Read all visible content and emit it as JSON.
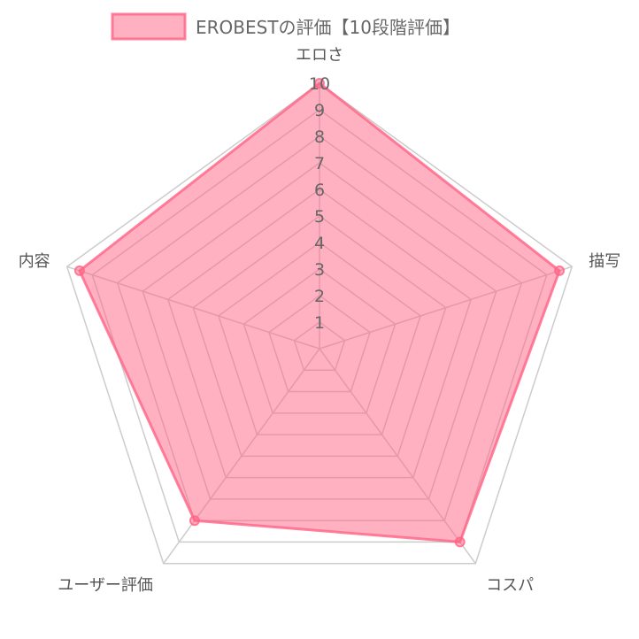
{
  "chart_data": {
    "type": "radar",
    "title": "",
    "categories": [
      "エロさ",
      "描写",
      "コスパ",
      "ユーザー評価",
      "内容"
    ],
    "series": [
      {
        "name": "EROBESTの評価【10段階評価】",
        "values": [
          10,
          9.5,
          9,
          8,
          9.5
        ]
      }
    ],
    "r_range": [
      0,
      10
    ],
    "ticks": [
      1,
      2,
      3,
      4,
      5,
      6,
      7,
      8,
      9,
      10
    ],
    "grid": true,
    "legend_position": "top"
  },
  "colors": {
    "series_fill": "rgba(255, 99, 132, 0.5)",
    "series_stroke": "rgba(255, 99, 132, 0.8)",
    "grid_line": "#cccccc"
  }
}
